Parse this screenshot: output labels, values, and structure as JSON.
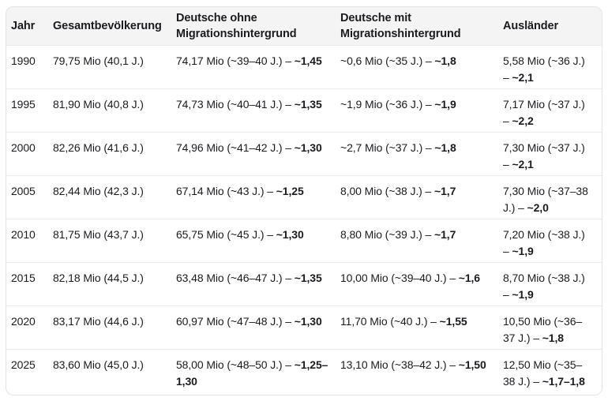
{
  "colors": {
    "background": "#ffffff",
    "header_bg": "#f4f4f5",
    "border": "#e3e3e6",
    "row_divider": "#ebebee",
    "text": "#1b1b1f"
  },
  "chart_data": {
    "type": "table",
    "columns": [
      "Jahr",
      "Gesamtbevölkerung",
      "Deutsche ohne Migrationshintergrund",
      "Deutsche mit Migrationshintergrund",
      "Ausländer"
    ],
    "rows": [
      {
        "jahr": "1990",
        "gesamtbevoelkerung": "79,75 Mio (40,1 J.)",
        "deutsche_ohne_mh": {
          "text": "74,17 Mio (~39–40 J.) – ",
          "bold": "~1,45"
        },
        "deutsche_mit_mh": {
          "text": "~0,6 Mio (~35 J.) – ",
          "bold": "~1,8"
        },
        "auslaender": {
          "text": "5,58 Mio (~36 J.) – ",
          "bold": "~2,1"
        }
      },
      {
        "jahr": "1995",
        "gesamtbevoelkerung": "81,90 Mio (40,8 J.)",
        "deutsche_ohne_mh": {
          "text": "74,73 Mio (~40–41 J.) – ",
          "bold": "~1,35"
        },
        "deutsche_mit_mh": {
          "text": "~1,9 Mio (~36 J.) – ",
          "bold": "~1,9"
        },
        "auslaender": {
          "text": "7,17 Mio (~37 J.) – ",
          "bold": "~2,2"
        }
      },
      {
        "jahr": "2000",
        "gesamtbevoelkerung": "82,26 Mio (41,6 J.)",
        "deutsche_ohne_mh": {
          "text": "74,96 Mio (~41–42 J.) – ",
          "bold": "~1,30"
        },
        "deutsche_mit_mh": {
          "text": "~2,7 Mio (~37 J.) – ",
          "bold": "~1,8"
        },
        "auslaender": {
          "text": "7,30 Mio (~37 J.) – ",
          "bold": "~2,1"
        }
      },
      {
        "jahr": "2005",
        "gesamtbevoelkerung": "82,44 Mio (42,3 J.)",
        "deutsche_ohne_mh": {
          "text": "67,14 Mio (~43 J.) – ",
          "bold": "~1,25"
        },
        "deutsche_mit_mh": {
          "text": "8,00 Mio (~38 J.) – ",
          "bold": "~1,7"
        },
        "auslaender": {
          "text": "7,30 Mio (~37–38 J.) – ",
          "bold": "~2,0"
        }
      },
      {
        "jahr": "2010",
        "gesamtbevoelkerung": "81,75 Mio (43,7 J.)",
        "deutsche_ohne_mh": {
          "text": "65,75 Mio (~45 J.) – ",
          "bold": "~1,30"
        },
        "deutsche_mit_mh": {
          "text": "8,80 Mio (~39 J.) – ",
          "bold": "~1,7"
        },
        "auslaender": {
          "text": "7,20 Mio (~38 J.) – ",
          "bold": "~1,9"
        }
      },
      {
        "jahr": "2015",
        "gesamtbevoelkerung": "82,18 Mio (44,5 J.)",
        "deutsche_ohne_mh": {
          "text": "63,48 Mio (~46–47 J.) – ",
          "bold": "~1,35"
        },
        "deutsche_mit_mh": {
          "text": "10,00 Mio (~39–40 J.) – ",
          "bold": "~1,6"
        },
        "auslaender": {
          "text": "8,70 Mio (~38 J.) – ",
          "bold": "~1,9"
        }
      },
      {
        "jahr": "2020",
        "gesamtbevoelkerung": "83,17 Mio (44,6 J.)",
        "deutsche_ohne_mh": {
          "text": "60,97 Mio (~47–48 J.) – ",
          "bold": "~1,30"
        },
        "deutsche_mit_mh": {
          "text": "11,70 Mio (~40 J.) – ",
          "bold": "~1,55"
        },
        "auslaender": {
          "text": "10,50 Mio (~36–37 J.) – ",
          "bold": "~1,8"
        }
      },
      {
        "jahr": "2025",
        "gesamtbevoelkerung": "83,60 Mio (45,0 J.)",
        "deutsche_ohne_mh": {
          "text": "58,00 Mio (~48–50 J.) – ",
          "bold": "~1,25–1,30"
        },
        "deutsche_mit_mh": {
          "text": "13,10 Mio (~38–42 J.) – ",
          "bold": "~1,50"
        },
        "auslaender": {
          "text": "12,50 Mio (~35–38 J.) – ",
          "bold": "~1,7–1,8"
        }
      }
    ]
  }
}
